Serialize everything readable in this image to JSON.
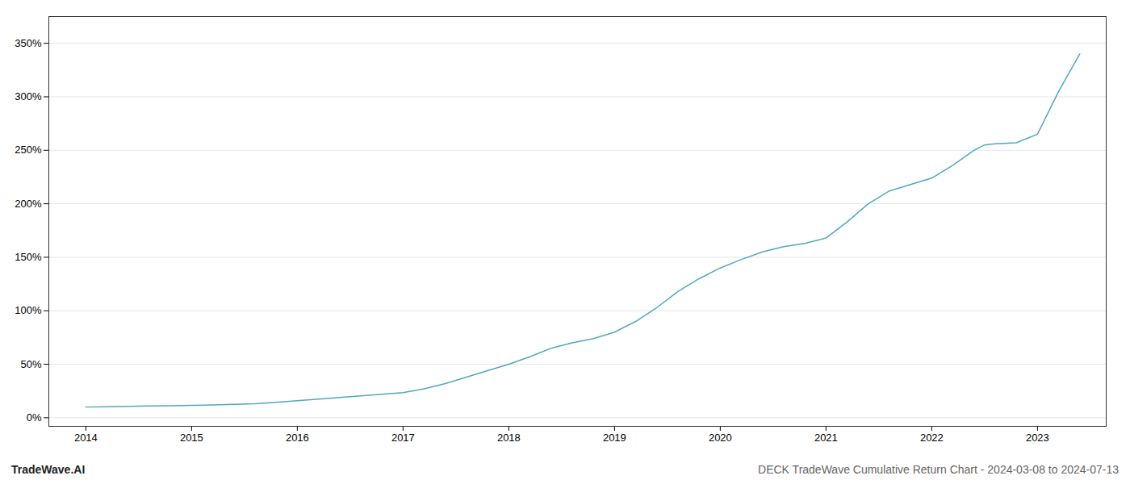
{
  "chart_data": {
    "type": "line",
    "x": [
      2014.0,
      2014.2,
      2014.4,
      2014.6,
      2014.8,
      2015.0,
      2015.2,
      2015.4,
      2015.6,
      2015.8,
      2016.0,
      2016.2,
      2016.4,
      2016.6,
      2016.8,
      2017.0,
      2017.2,
      2017.4,
      2017.6,
      2017.8,
      2018.0,
      2018.2,
      2018.4,
      2018.6,
      2018.8,
      2019.0,
      2019.2,
      2019.4,
      2019.6,
      2019.8,
      2020.0,
      2020.2,
      2020.4,
      2020.6,
      2020.8,
      2021.0,
      2021.2,
      2021.4,
      2021.6,
      2021.8,
      2022.0,
      2022.2,
      2022.4,
      2022.5,
      2022.6,
      2022.8,
      2023.0,
      2023.2,
      2023.4
    ],
    "values": [
      10,
      10.3,
      10.6,
      11.0,
      11.3,
      11.6,
      12.0,
      12.5,
      13.2,
      14.5,
      16.0,
      17.5,
      19.0,
      20.5,
      22.0,
      23.5,
      27.0,
      32.0,
      38.0,
      44.0,
      50.0,
      57.0,
      65.0,
      70.0,
      74.0,
      80.0,
      90.0,
      103.0,
      118.0,
      130.0,
      140.0,
      148.0,
      155.0,
      160.0,
      163.0,
      168.0,
      183.0,
      200.0,
      212.0,
      218.0,
      224.0,
      236.0,
      250.0,
      255.0,
      256.0,
      257.0,
      265.0,
      305.0,
      340.0
    ],
    "color": "#4fa8c5",
    "xlim": [
      2013.65,
      2023.65
    ],
    "xticks": [
      2014,
      2015,
      2016,
      2017,
      2018,
      2019,
      2020,
      2021,
      2022,
      2023
    ],
    "ylim": [
      -8,
      375
    ],
    "yticks": [
      {
        "value": 0,
        "label": "0%"
      },
      {
        "value": 50,
        "label": "50%"
      },
      {
        "value": 100,
        "label": "100%"
      },
      {
        "value": 150,
        "label": "150%"
      },
      {
        "value": 200,
        "label": "200%"
      },
      {
        "value": 250,
        "label": "250%"
      },
      {
        "value": 300,
        "label": "300%"
      },
      {
        "value": 350,
        "label": "350%"
      }
    ],
    "grid": "y",
    "annotations": [
      "TradeWave.AI",
      "DECK TradeWave Cumulative Return Chart - 2024-03-08 to 2024-07-13"
    ]
  }
}
